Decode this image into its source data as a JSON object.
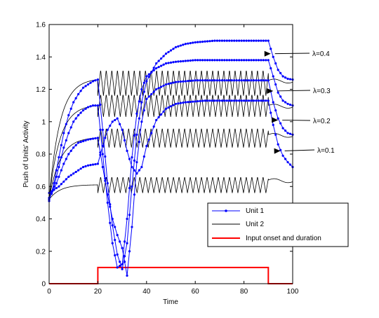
{
  "chart_data": {
    "type": "line",
    "title": "",
    "xlabel": "Time",
    "ylabel": "Push of Units' Activity",
    "xlim": [
      0,
      100
    ],
    "ylim": [
      0,
      1.6
    ],
    "xticks": [
      "0",
      "20",
      "40",
      "60",
      "80",
      "100"
    ],
    "yticks": [
      "0",
      "0.2",
      "0.4",
      "0.6",
      "0.8",
      "1",
      "1.2",
      "1.4",
      "1.6"
    ],
    "grid": false,
    "legend_position": "lower-right",
    "legend": [
      {
        "label": "Unit 1",
        "color": "#0000ff",
        "style": "line-marker"
      },
      {
        "label": "Unit 2",
        "color": "#000000",
        "style": "line"
      },
      {
        "label": "Input onset and duration",
        "color": "#ff0000",
        "style": "thick-line"
      }
    ],
    "annotations": [
      {
        "text": "λ=0.4",
        "x": 91,
        "y": 1.42
      },
      {
        "text": "λ=0.3",
        "x": 92,
        "y": 1.19
      },
      {
        "text": "λ=0.2",
        "x": 94,
        "y": 1.01
      },
      {
        "text": "λ=0.1",
        "x": 95,
        "y": 0.82
      }
    ],
    "series": [
      {
        "legend": "Unit 1",
        "lambda": "λ=0.4",
        "color": "#0000ff",
        "x": [
          0,
          2,
          4,
          6,
          8,
          10,
          12,
          14,
          16,
          18,
          20,
          22,
          24,
          26,
          28,
          30,
          32,
          34,
          36,
          38,
          40,
          44,
          48,
          52,
          56,
          60,
          64,
          68,
          72,
          76,
          80,
          84,
          88,
          90,
          92,
          94,
          96,
          98,
          100
        ],
        "y": [
          0.51,
          0.62,
          0.78,
          0.93,
          1.04,
          1.12,
          1.17,
          1.21,
          1.23,
          1.25,
          1.26,
          0.95,
          0.62,
          0.36,
          0.18,
          0.09,
          0.25,
          0.6,
          0.92,
          1.12,
          1.25,
          1.36,
          1.42,
          1.46,
          1.48,
          1.49,
          1.495,
          1.5,
          1.5,
          1.5,
          1.5,
          1.5,
          1.5,
          1.5,
          1.4,
          1.32,
          1.28,
          1.265,
          1.26
        ]
      },
      {
        "legend": "Unit 1",
        "lambda": "λ=0.3",
        "color": "#0000ff",
        "x": [
          0,
          2,
          4,
          6,
          8,
          10,
          12,
          14,
          16,
          18,
          20,
          22,
          24,
          26,
          28,
          30,
          32,
          34,
          36,
          38,
          40,
          44,
          48,
          52,
          56,
          60,
          64,
          68,
          72,
          76,
          80,
          84,
          88,
          90,
          92,
          94,
          96,
          98,
          100
        ],
        "y": [
          0.52,
          0.6,
          0.72,
          0.84,
          0.93,
          1.0,
          1.04,
          1.07,
          1.09,
          1.1,
          1.1,
          0.8,
          0.5,
          0.25,
          0.1,
          0.12,
          0.4,
          0.78,
          1.05,
          1.2,
          1.28,
          1.33,
          1.36,
          1.37,
          1.375,
          1.38,
          1.38,
          1.38,
          1.38,
          1.38,
          1.38,
          1.38,
          1.38,
          1.38,
          1.28,
          1.18,
          1.13,
          1.11,
          1.1
        ]
      },
      {
        "legend": "Unit 1",
        "lambda": "λ=0.2",
        "color": "#0000ff",
        "x": [
          0,
          2,
          4,
          6,
          8,
          10,
          12,
          14,
          16,
          18,
          20,
          22,
          24,
          26,
          28,
          30,
          32,
          34,
          36,
          38,
          40,
          44,
          48,
          52,
          56,
          60,
          64,
          68,
          72,
          76,
          80,
          84,
          88,
          90,
          92,
          94,
          96,
          98,
          100
        ],
        "y": [
          0.53,
          0.58,
          0.66,
          0.74,
          0.8,
          0.84,
          0.87,
          0.88,
          0.89,
          0.895,
          0.9,
          0.72,
          0.55,
          0.4,
          0.3,
          0.22,
          0.05,
          0.35,
          0.75,
          1.0,
          1.14,
          1.2,
          1.23,
          1.245,
          1.25,
          1.255,
          1.255,
          1.255,
          1.255,
          1.255,
          1.255,
          1.255,
          1.255,
          1.255,
          1.12,
          1.02,
          0.96,
          0.93,
          0.92
        ]
      },
      {
        "legend": "Unit 1",
        "lambda": "λ=0.1",
        "color": "#0000ff",
        "x": [
          0,
          2,
          4,
          6,
          8,
          10,
          12,
          14,
          16,
          18,
          20,
          22,
          24,
          26,
          28,
          30,
          32,
          34,
          36,
          38,
          40,
          44,
          48,
          52,
          56,
          60,
          64,
          68,
          72,
          76,
          80,
          84,
          88,
          90,
          92,
          94,
          96,
          98,
          100
        ],
        "y": [
          0.56,
          0.58,
          0.6,
          0.63,
          0.66,
          0.68,
          0.7,
          0.72,
          0.73,
          0.735,
          0.74,
          0.85,
          0.95,
          1.0,
          1.02,
          0.95,
          0.82,
          0.72,
          0.68,
          0.72,
          0.85,
          1.01,
          1.08,
          1.11,
          1.12,
          1.125,
          1.13,
          1.13,
          1.13,
          1.13,
          1.13,
          1.13,
          1.13,
          1.13,
          0.98,
          0.86,
          0.79,
          0.75,
          0.72
        ]
      }
    ],
    "unit2_series": [
      {
        "legend": "Unit 2",
        "color": "#000000",
        "x_start": 0,
        "x_end": 100,
        "rise_level": 1.26,
        "osc_mean": 1.24,
        "osc_amplitude": 0.08,
        "osc_period": 2.3,
        "post_level": 1.255
      },
      {
        "legend": "Unit 2",
        "color": "#000000",
        "x_start": 0,
        "x_end": 100,
        "rise_level": 1.1,
        "osc_mean": 1.1,
        "osc_amplitude": 0.07,
        "osc_period": 2.3,
        "post_level": 1.1
      },
      {
        "legend": "Unit 2",
        "color": "#000000",
        "x_start": 0,
        "x_end": 100,
        "rise_level": 0.9,
        "osc_mean": 0.9,
        "osc_amplitude": 0.06,
        "osc_period": 2.3,
        "post_level": 0.92
      },
      {
        "legend": "Unit 2",
        "color": "#000000",
        "x_start": 0,
        "x_end": 100,
        "rise_level": 0.61,
        "osc_mean": 0.61,
        "osc_amplitude": 0.05,
        "osc_period": 2.3,
        "post_level": 0.64
      }
    ],
    "input_signal": {
      "legend": "Input onset and duration",
      "color": "#ff0000",
      "x": [
        0,
        20,
        20,
        90,
        90,
        100
      ],
      "y": [
        0,
        0,
        0.1,
        0.1,
        0,
        0
      ]
    }
  }
}
